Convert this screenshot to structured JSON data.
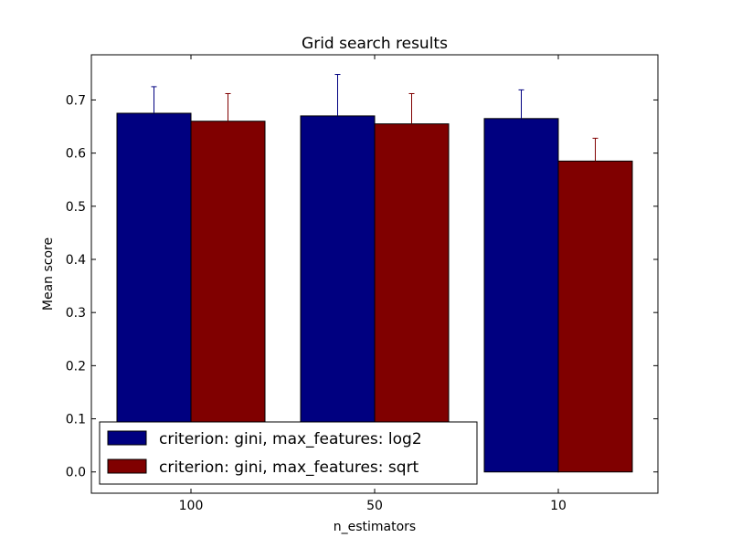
{
  "chart_data": {
    "type": "bar",
    "title": "Grid search results",
    "xlabel": "n_estimators",
    "ylabel": "Mean score",
    "categories": [
      "100",
      "50",
      "10"
    ],
    "ylim": [
      -0.04,
      0.785
    ],
    "yticks": [
      0.0,
      0.1,
      0.2,
      0.3,
      0.4,
      0.5,
      0.6,
      0.7
    ],
    "ytick_labels": [
      "0.0",
      "0.1",
      "0.2",
      "0.3",
      "0.4",
      "0.5",
      "0.6",
      "0.7"
    ],
    "grid": false,
    "legend_position": "lower-left",
    "series": [
      {
        "name": "criterion: gini, max_features: log2",
        "color": "#000080",
        "values": [
          0.675,
          0.67,
          0.665
        ],
        "errors": [
          0.05,
          0.078,
          0.054
        ]
      },
      {
        "name": "criterion: gini, max_features: sqrt",
        "color": "#800000",
        "values": [
          0.66,
          0.655,
          0.585
        ],
        "errors": [
          0.052,
          0.057,
          0.043
        ]
      }
    ]
  }
}
